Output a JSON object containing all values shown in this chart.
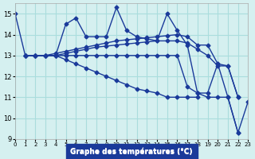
{
  "title": "Graphe des températures (°C)",
  "xlabel": "Graphe des températures (°C)",
  "background_color": "#d5f0f0",
  "line_color": "#1a3a9a",
  "grid_color": "#aadddd",
  "xlim": [
    0,
    23
  ],
  "ylim": [
    9,
    15.5
  ],
  "yticks": [
    9,
    10,
    11,
    12,
    13,
    14,
    15
  ],
  "xticks": [
    0,
    1,
    2,
    3,
    4,
    5,
    6,
    7,
    8,
    9,
    10,
    11,
    12,
    13,
    14,
    15,
    16,
    17,
    18,
    19,
    20,
    21,
    22,
    23
  ],
  "series": [
    [
      15.0,
      13.0,
      13.0,
      13.0,
      13.0,
      14.5,
      14.8,
      13.9,
      13.9,
      13.9,
      15.3,
      14.2,
      13.9,
      13.8,
      13.7,
      15.0,
      14.2,
      13.5,
      11.2,
      11.2,
      12.6,
      11.0,
      9.3,
      10.8
    ],
    [
      null,
      13.0,
      13.0,
      13.0,
      13.1,
      13.2,
      13.3,
      13.4,
      13.5,
      13.6,
      13.7,
      13.75,
      13.8,
      13.85,
      13.9,
      13.95,
      14.0,
      13.9,
      13.5,
      13.5,
      12.6,
      12.5,
      11.0,
      null
    ],
    [
      null,
      13.0,
      13.0,
      13.0,
      13.0,
      13.1,
      13.2,
      13.3,
      13.4,
      13.45,
      13.5,
      13.55,
      13.6,
      13.65,
      13.7,
      13.7,
      13.7,
      13.6,
      13.3,
      13.0,
      12.5,
      12.5,
      11.0,
      null
    ],
    [
      null,
      13.0,
      13.0,
      13.0,
      13.0,
      13.0,
      13.0,
      13.0,
      13.0,
      13.0,
      13.0,
      13.0,
      13.0,
      13.0,
      13.0,
      13.0,
      13.0,
      11.5,
      11.2,
      11.0,
      11.0,
      11.0,
      9.3,
      null
    ],
    [
      null,
      13.0,
      13.0,
      13.0,
      13.0,
      12.8,
      12.6,
      12.4,
      12.2,
      12.0,
      11.8,
      11.6,
      11.4,
      11.3,
      11.2,
      11.0,
      11.0,
      11.0,
      11.0,
      null,
      null,
      null,
      null,
      null
    ]
  ]
}
